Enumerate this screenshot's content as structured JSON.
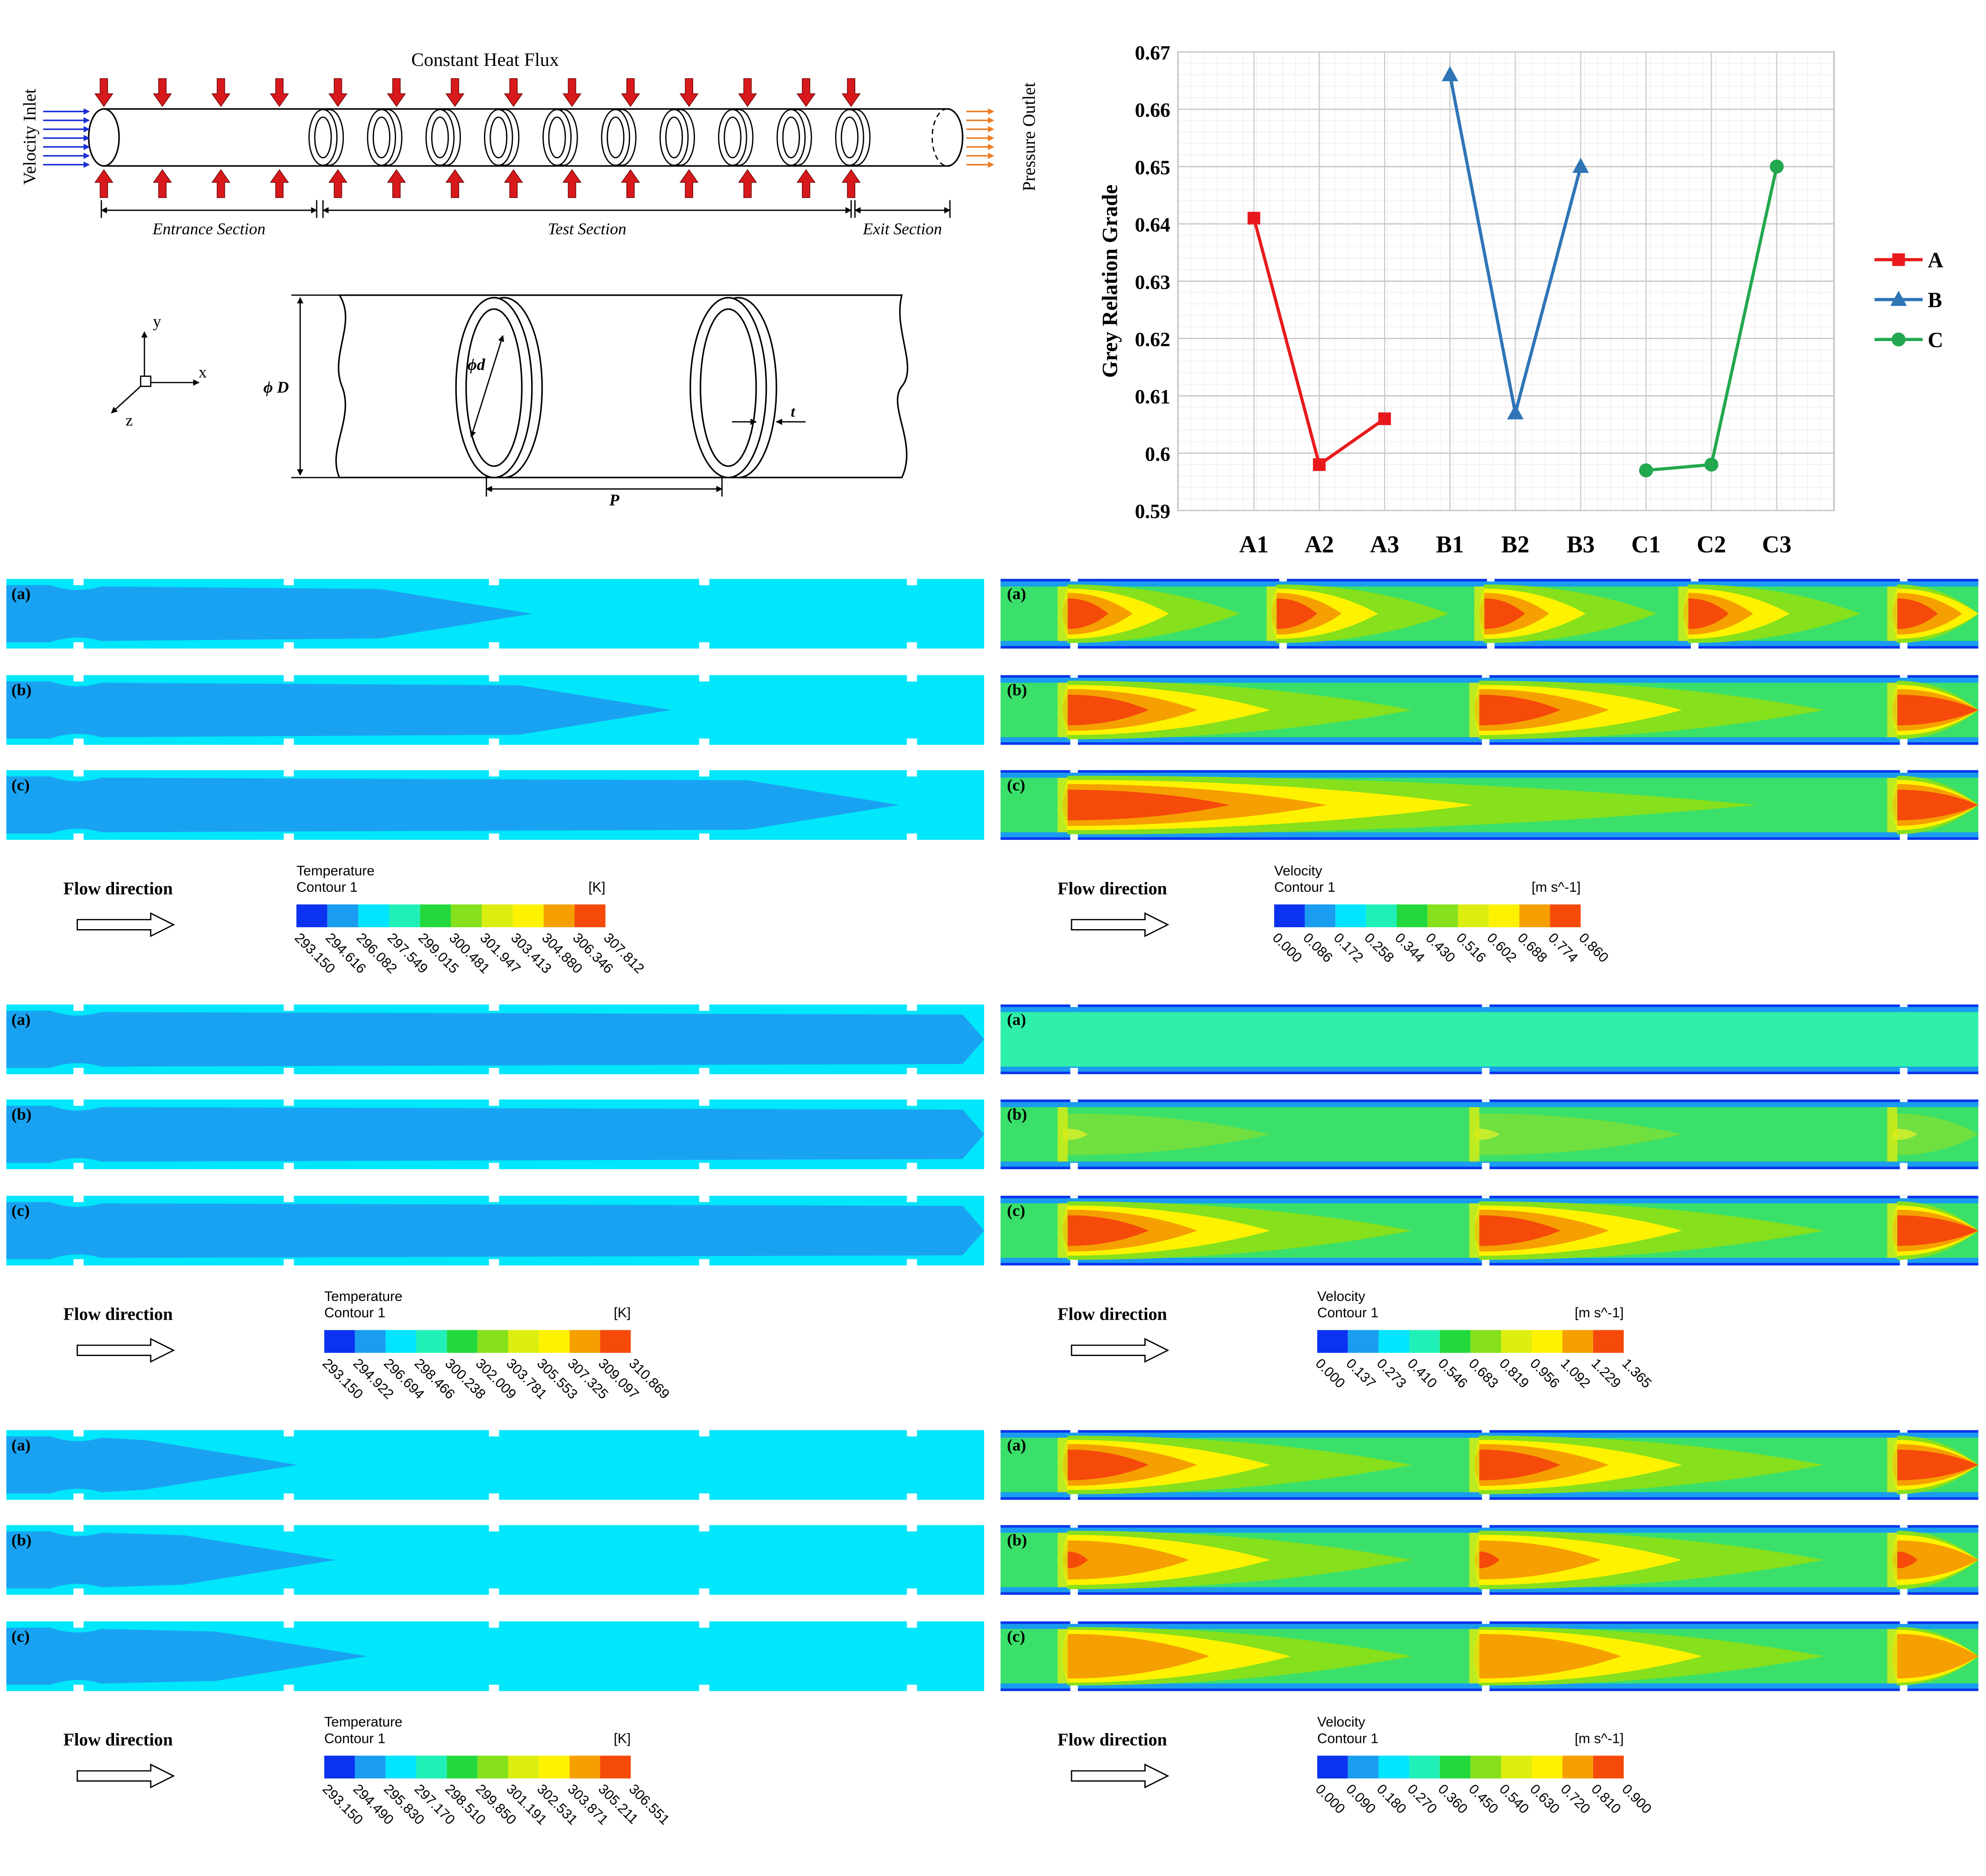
{
  "chart_data": {
    "type": "line",
    "ylabel": "Grey Relation Grade",
    "categories": [
      "A1",
      "A2",
      "A3",
      "B1",
      "B2",
      "B3",
      "C1",
      "C2",
      "C3"
    ],
    "series": [
      {
        "name": "A",
        "color": "#e8191c",
        "marker": "square",
        "values": [
          0.641,
          0.598,
          0.606,
          null,
          null,
          null,
          null,
          null,
          null
        ]
      },
      {
        "name": "B",
        "color": "#2e75b6",
        "marker": "triangle",
        "values": [
          null,
          null,
          null,
          0.666,
          0.607,
          0.65,
          null,
          null,
          null
        ]
      },
      {
        "name": "C",
        "color": "#22a84f",
        "marker": "circle",
        "values": [
          null,
          null,
          null,
          null,
          null,
          null,
          0.597,
          0.598,
          0.65
        ]
      }
    ],
    "ylim": [
      0.59,
      0.67
    ],
    "yticks": [
      0.59,
      0.6,
      0.61,
      0.62,
      0.63,
      0.64,
      0.65,
      0.66,
      0.67
    ],
    "grid": true,
    "legend": "right"
  },
  "diagram": {
    "heat_flux": "Constant Heat Flux",
    "inlet": "Velocity Inlet",
    "outlet": "Pressure Outlet",
    "sections": [
      "Entrance Section",
      "Test Section",
      "Exit Section"
    ],
    "axes": [
      "y",
      "x",
      "z"
    ],
    "diameter": "ϕ D",
    "ring_diameter": "ϕd",
    "thickness": "t",
    "pitch": "P"
  },
  "contours": [
    {
      "panels": [
        "(a)",
        "(b)",
        "(c)"
      ],
      "flow": "Flow direction",
      "temperature": {
        "title": "Temperature",
        "subtitle": "Contour 1",
        "unit": "[K]",
        "labels": [
          "293.150",
          "294.616",
          "296.082",
          "297.549",
          "299.015",
          "300.481",
          "301.947",
          "303.413",
          "304.880",
          "306.346",
          "307.812"
        ]
      },
      "velocity": {
        "title": "Velocity",
        "subtitle": "Contour 1",
        "unit": "[m s^-1]",
        "labels": [
          "0.000",
          "0.086",
          "0.172",
          "0.258",
          "0.344",
          "0.430",
          "0.516",
          "0.602",
          "0.688",
          "0.774",
          "0.860"
        ]
      }
    },
    {
      "panels": [
        "(a)",
        "(b)",
        "(c)"
      ],
      "flow": "Flow direction",
      "temperature": {
        "title": "Temperature",
        "subtitle": "Contour 1",
        "unit": "[K]",
        "labels": [
          "293.150",
          "294.922",
          "296.694",
          "298.466",
          "300.238",
          "302.009",
          "303.781",
          "305.553",
          "307.325",
          "309.097",
          "310.869"
        ]
      },
      "velocity": {
        "title": "Velocity",
        "subtitle": "Contour 1",
        "unit": "[m s^-1]",
        "labels": [
          "0.000",
          "0.137",
          "0.273",
          "0.410",
          "0.546",
          "0.683",
          "0.819",
          "0.956",
          "1.092",
          "1.229",
          "1.365"
        ]
      }
    },
    {
      "panels": [
        "(a)",
        "(b)",
        "(c)"
      ],
      "flow": "Flow direction",
      "temperature": {
        "title": "Temperature",
        "subtitle": "Contour 1",
        "unit": "[K]",
        "labels": [
          "293.150",
          "294.490",
          "295.830",
          "297.170",
          "298.510",
          "299.850",
          "301.191",
          "302.531",
          "303.871",
          "305.211",
          "306.551"
        ]
      },
      "velocity": {
        "title": "Velocity",
        "subtitle": "Contour 1",
        "unit": "[m s^-1]",
        "labels": [
          "0.000",
          "0.090",
          "0.180",
          "0.270",
          "0.360",
          "0.450",
          "0.540",
          "0.630",
          "0.720",
          "0.810",
          "0.900"
        ]
      }
    }
  ]
}
